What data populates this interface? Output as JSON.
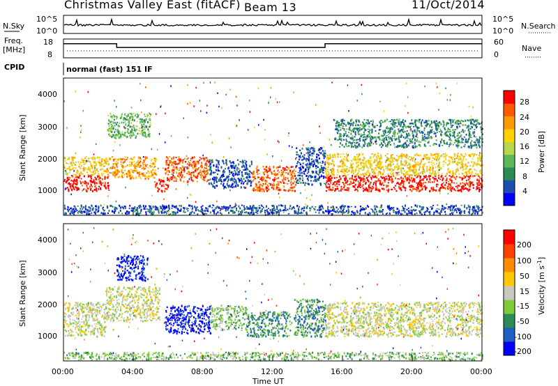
{
  "header": {
    "station": "Christmas Valley East (fitACF)",
    "beam": "Beam 13",
    "date": "11/Oct/2014"
  },
  "noise_panel": {
    "left_label": "N.Sky",
    "right_label": "N.Search",
    "left_ticks": [
      "10^5",
      "10^0"
    ],
    "right_ticks": [
      "10^5",
      "10^0"
    ]
  },
  "freq_panel": {
    "left_label_line1": "Freq.",
    "left_label_line2": "[MHz]",
    "right_label": "Nave",
    "left_ticks": [
      "18",
      "8"
    ],
    "right_ticks": [
      "60",
      "0"
    ],
    "freq_steps": [
      {
        "t": 0.0,
        "v": 16.2
      },
      {
        "t": 3.05,
        "v": 16.2
      },
      {
        "t": 3.05,
        "v": 13.3
      },
      {
        "t": 15.0,
        "v": 13.3
      },
      {
        "t": 15.0,
        "v": 16.2
      },
      {
        "t": 24.0,
        "v": 16.2
      }
    ]
  },
  "cpid": {
    "label": "CPID",
    "value": "normal (fast) 151 IF"
  },
  "x_axis": {
    "label": "Time UT",
    "ticks": [
      "00:00",
      "04:00",
      "08:00",
      "12:00",
      "16:00",
      "20:00",
      "00:00"
    ],
    "range_hours": [
      0,
      24
    ]
  },
  "power_panel": {
    "ylabel": "Slant Range [km]",
    "yticks": [
      "4000",
      "3000",
      "2000",
      "1000"
    ],
    "colorbar_label": "Power [dB]",
    "colorbar_ticks": [
      "28",
      "24",
      "20",
      "16",
      "12",
      "8",
      "4"
    ],
    "colors": [
      "#0000ff",
      "#1c4fb0",
      "#2b8a56",
      "#5fb85a",
      "#b8d84a",
      "#ffd200",
      "#ff9a00",
      "#ff5a00",
      "#ff0000"
    ]
  },
  "velocity_panel": {
    "ylabel": "Slant Range [km]",
    "yticks": [
      "4000",
      "3000",
      "2000",
      "1000"
    ],
    "colorbar_label": "Velocity [m s^-1]",
    "colorbar_ticks": [
      "200",
      "100",
      "50",
      "15",
      "-15",
      "-50",
      "-100",
      "-200"
    ],
    "colors": [
      "#0000ff",
      "#2060c0",
      "#2e8b57",
      "#7fcc3a",
      "#c8c8c0",
      "#ffc800",
      "#ff8c00",
      "#ff4000",
      "#ff0000"
    ]
  },
  "chart_data": {
    "type": "heatmap",
    "title": "Christmas Valley East (fitACF) Beam 13 11/Oct/2014",
    "xlabel": "Time UT",
    "ylabel": "Slant Range [km]",
    "xlim_hours": [
      0,
      24
    ],
    "ylim_km": [
      200,
      4600
    ],
    "power_regions": [
      {
        "t0": 0.0,
        "t1": 2.6,
        "r0": 1000,
        "r1": 1500,
        "level": 8
      },
      {
        "t0": 0.0,
        "t1": 2.6,
        "r0": 1500,
        "r1": 2100,
        "level": 5
      },
      {
        "t0": 2.6,
        "t1": 5.3,
        "r0": 1400,
        "r1": 2100,
        "level": 6
      },
      {
        "t0": 2.5,
        "t1": 5.0,
        "r0": 2700,
        "r1": 3500,
        "level": 3
      },
      {
        "t0": 5.2,
        "t1": 6.0,
        "r0": 1000,
        "r1": 1400,
        "level": 8
      },
      {
        "t0": 5.8,
        "t1": 8.3,
        "r0": 1300,
        "r1": 2100,
        "level": 7
      },
      {
        "t0": 8.3,
        "t1": 10.8,
        "r0": 1100,
        "r1": 2000,
        "level": 1
      },
      {
        "t0": 10.8,
        "t1": 13.3,
        "r0": 1000,
        "r1": 1800,
        "level": 7
      },
      {
        "t0": 13.3,
        "t1": 15.0,
        "r0": 1200,
        "r1": 2400,
        "level": 1
      },
      {
        "t0": 15.0,
        "t1": 24.0,
        "r0": 1000,
        "r1": 1500,
        "level": 8
      },
      {
        "t0": 15.0,
        "t1": 24.0,
        "r0": 1500,
        "r1": 2200,
        "level": 5
      },
      {
        "t0": 15.5,
        "t1": 24.0,
        "r0": 2400,
        "r1": 3300,
        "level": 2
      },
      {
        "t0": 0.0,
        "t1": 24.0,
        "r0": 250,
        "r1": 550,
        "level": 1
      }
    ],
    "velocity_regions": [
      {
        "t0": 0.0,
        "t1": 2.4,
        "r0": 1000,
        "r1": 2100,
        "level": 4
      },
      {
        "t0": 2.4,
        "t1": 5.5,
        "r0": 1500,
        "r1": 2600,
        "level": 4
      },
      {
        "t0": 3.0,
        "t1": 4.8,
        "r0": 2800,
        "r1": 3600,
        "level": 0
      },
      {
        "t0": 5.8,
        "t1": 8.4,
        "r0": 1100,
        "r1": 2000,
        "level": 0
      },
      {
        "t0": 8.4,
        "t1": 10.5,
        "r0": 1200,
        "r1": 2000,
        "level": 3
      },
      {
        "t0": 10.5,
        "t1": 13.0,
        "r0": 1000,
        "r1": 1800,
        "level": 2
      },
      {
        "t0": 13.2,
        "t1": 15.0,
        "r0": 1000,
        "r1": 2200,
        "level": 2
      },
      {
        "t0": 15.0,
        "t1": 24.0,
        "r0": 1000,
        "r1": 2100,
        "level": 4
      },
      {
        "t0": 0.0,
        "t1": 24.0,
        "r0": 250,
        "r1": 500,
        "level": 3
      }
    ]
  }
}
